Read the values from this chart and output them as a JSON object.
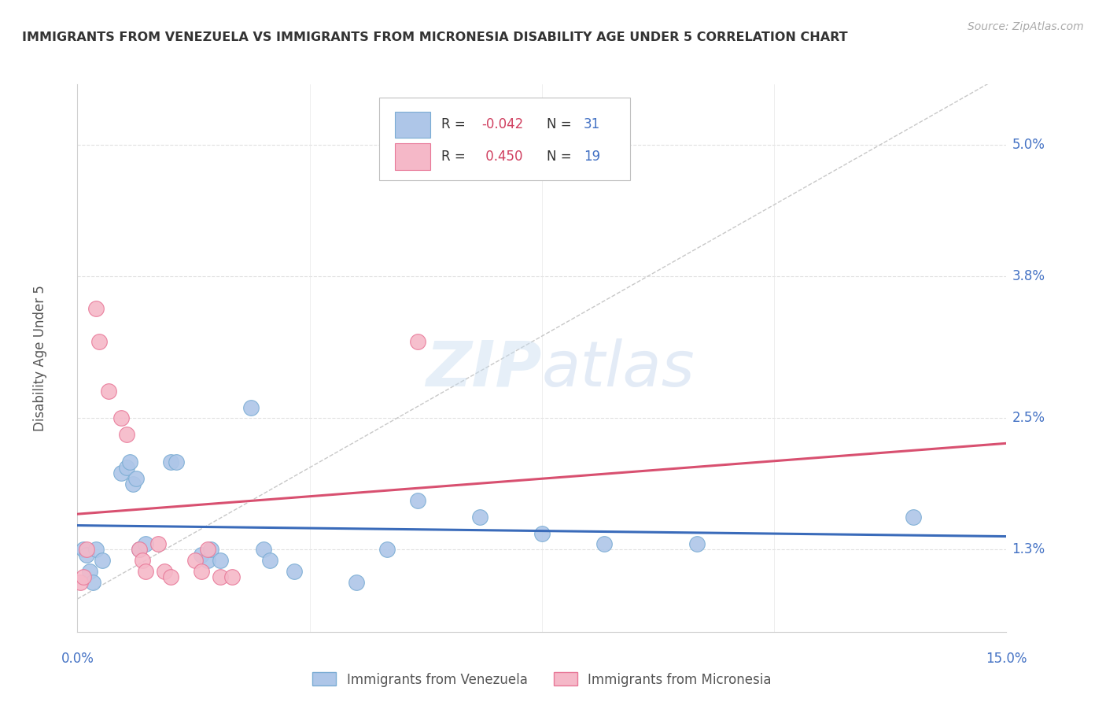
{
  "title": "IMMIGRANTS FROM VENEZUELA VS IMMIGRANTS FROM MICRONESIA DISABILITY AGE UNDER 5 CORRELATION CHART",
  "source": "Source: ZipAtlas.com",
  "ylabel": "Disability Age Under 5",
  "yticks": [
    1.3,
    2.5,
    3.8,
    5.0
  ],
  "ytick_labels": [
    "1.3%",
    "2.5%",
    "3.8%",
    "5.0%"
  ],
  "xlim": [
    0.0,
    15.0
  ],
  "ylim": [
    0.55,
    5.55
  ],
  "watermark": "ZIPatlas",
  "venezuela_points": [
    [
      0.1,
      1.3
    ],
    [
      0.15,
      1.25
    ],
    [
      0.2,
      1.1
    ],
    [
      0.25,
      1.0
    ],
    [
      0.3,
      1.3
    ],
    [
      0.4,
      1.2
    ],
    [
      0.7,
      2.0
    ],
    [
      0.8,
      2.05
    ],
    [
      0.85,
      2.1
    ],
    [
      0.9,
      1.9
    ],
    [
      0.95,
      1.95
    ],
    [
      1.0,
      1.3
    ],
    [
      1.1,
      1.35
    ],
    [
      1.5,
      2.1
    ],
    [
      1.6,
      2.1
    ],
    [
      2.0,
      1.25
    ],
    [
      2.1,
      1.2
    ],
    [
      2.15,
      1.3
    ],
    [
      2.3,
      1.2
    ],
    [
      2.8,
      2.6
    ],
    [
      3.0,
      1.3
    ],
    [
      3.1,
      1.2
    ],
    [
      3.5,
      1.1
    ],
    [
      4.5,
      1.0
    ],
    [
      5.0,
      1.3
    ],
    [
      5.5,
      1.75
    ],
    [
      6.5,
      1.6
    ],
    [
      7.5,
      1.45
    ],
    [
      8.5,
      1.35
    ],
    [
      10.0,
      1.35
    ],
    [
      13.5,
      1.6
    ]
  ],
  "micronesia_points": [
    [
      0.05,
      1.0
    ],
    [
      0.1,
      1.05
    ],
    [
      0.15,
      1.3
    ],
    [
      0.3,
      3.5
    ],
    [
      0.35,
      3.2
    ],
    [
      0.5,
      2.75
    ],
    [
      0.7,
      2.5
    ],
    [
      0.8,
      2.35
    ],
    [
      1.0,
      1.3
    ],
    [
      1.05,
      1.2
    ],
    [
      1.1,
      1.1
    ],
    [
      1.3,
      1.35
    ],
    [
      1.4,
      1.1
    ],
    [
      1.5,
      1.05
    ],
    [
      1.9,
      1.2
    ],
    [
      2.0,
      1.1
    ],
    [
      2.1,
      1.3
    ],
    [
      2.3,
      1.05
    ],
    [
      2.5,
      1.05
    ],
    [
      5.5,
      3.2
    ]
  ],
  "venezuela_color": "#aec6e8",
  "venezuela_edge": "#7badd4",
  "micronesia_color": "#f5b8c8",
  "micronesia_edge": "#e87898",
  "trend_venezuela_color": "#3a6bba",
  "trend_micronesia_color": "#d85070",
  "diagonal_color": "#c8c8c8",
  "background_color": "#ffffff",
  "grid_color": "#e0e0e0",
  "title_color": "#333333",
  "axis_label_color": "#4472c4",
  "source_color": "#aaaaaa"
}
